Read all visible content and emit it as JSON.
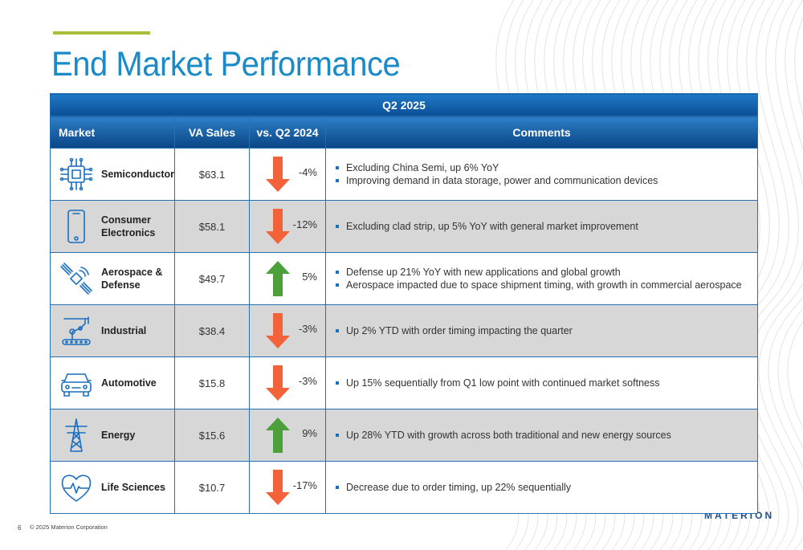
{
  "title": "End Market Performance",
  "table": {
    "band": "Q2 2025",
    "headers": {
      "market": "Market",
      "sales": "VA Sales",
      "change": "vs. Q2 2024",
      "comments": "Comments"
    },
    "rows": [
      {
        "icon": "chip-icon",
        "market": "Semiconductor",
        "sales": "$63.1",
        "direction": "down",
        "change": "-4%",
        "comments": [
          "Excluding China Semi, up 6% YoY",
          "Improving demand in data storage, power and communication devices"
        ]
      },
      {
        "icon": "smartphone-icon",
        "market": "Consumer Electronics",
        "sales": "$58.1",
        "direction": "down",
        "change": "-12%",
        "comments": [
          "Excluding clad strip, up 5% YoY with general market improvement"
        ]
      },
      {
        "icon": "satellite-icon",
        "market": "Aerospace & Defense",
        "sales": "$49.7",
        "direction": "up",
        "change": "5%",
        "comments": [
          "Defense up 21% YoY with new applications and global growth",
          "Aerospace impacted due to space shipment timing, with growth in commercial aerospace"
        ]
      },
      {
        "icon": "robot-arm-icon",
        "market": "Industrial",
        "sales": "$38.4",
        "direction": "down",
        "change": "-3%",
        "comments": [
          "Up 2% YTD with order timing impacting the quarter"
        ]
      },
      {
        "icon": "car-icon",
        "market": "Automotive",
        "sales": "$15.8",
        "direction": "down",
        "change": "-3%",
        "comments": [
          "Up 15% sequentially from Q1 low point with continued market softness"
        ]
      },
      {
        "icon": "power-tower-icon",
        "market": "Energy",
        "sales": "$15.6",
        "direction": "up",
        "change": "9%",
        "comments": [
          "Up 28% YTD with growth across both traditional and new energy sources"
        ]
      },
      {
        "icon": "heartbeat-icon",
        "market": "Life Sciences",
        "sales": "$10.7",
        "direction": "down",
        "change": "-17%",
        "comments": [
          "Decrease due to order timing, up 22% sequentially"
        ]
      }
    ]
  },
  "colors": {
    "down_arrow": "#f4623a",
    "up_arrow": "#4ca03a",
    "header_blue": "#0a4f94",
    "title_blue": "#1a8ac8",
    "accent": "#a9bf3a",
    "icon_blue": "#1a6fc0"
  },
  "footer": {
    "page": "6",
    "copyright": "© 2025 Materion Corporation",
    "logo": "MATERION"
  }
}
